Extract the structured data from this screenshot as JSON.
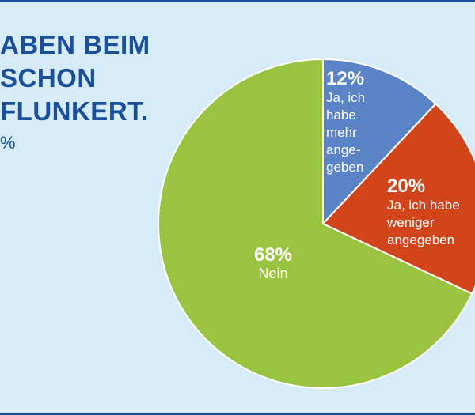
{
  "headline": {
    "lines": [
      "ABEN BEIM",
      "SCHON",
      "FLUNKERT."
    ],
    "note": "%"
  },
  "colors": {
    "background": "#d7ecf9",
    "title": "#1b4f9c"
  },
  "chart_data": {
    "type": "pie",
    "slices": [
      {
        "pct_label": "12%",
        "value": 12,
        "label_lines": [
          "Ja, ich",
          "habe",
          "mehr",
          "ange-",
          "geben"
        ],
        "color": "#5b84c7"
      },
      {
        "pct_label": "20%",
        "value": 20,
        "label_lines": [
          "Ja, ich habe",
          "weniger",
          "angegeben"
        ],
        "color": "#d2451b"
      },
      {
        "pct_label": "68%",
        "value": 68,
        "label_lines": [
          "Nein"
        ],
        "color": "#9ac43f"
      }
    ]
  }
}
